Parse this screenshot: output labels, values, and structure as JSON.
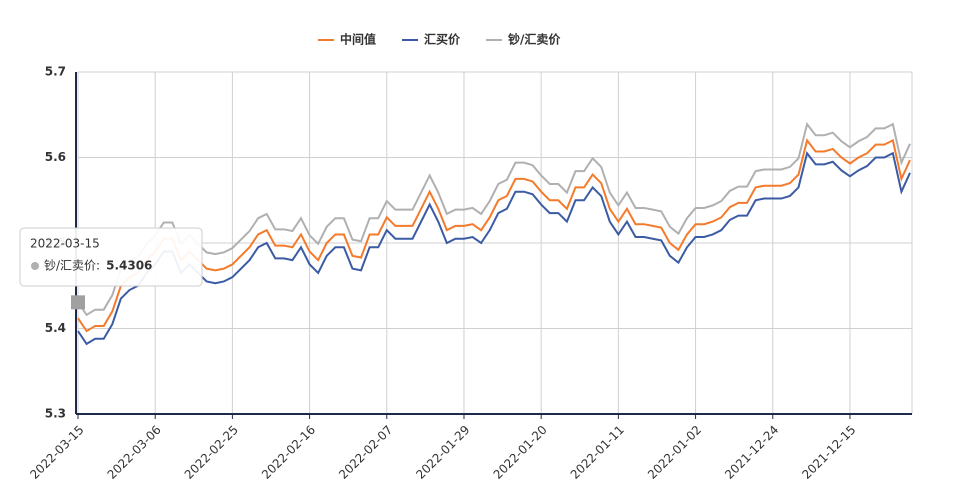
{
  "chart_data": {
    "type": "line",
    "categories": [
      "2022-03-15",
      null,
      null,
      null,
      null,
      null,
      null,
      null,
      null,
      "2022-03-06",
      null,
      null,
      null,
      null,
      null,
      null,
      null,
      null,
      "2022-02-25",
      null,
      null,
      null,
      null,
      null,
      null,
      null,
      null,
      "2022-02-16",
      null,
      null,
      null,
      null,
      null,
      null,
      null,
      null,
      "2022-02-07",
      null,
      null,
      null,
      null,
      null,
      null,
      null,
      null,
      "2022-01-29",
      null,
      null,
      null,
      null,
      null,
      null,
      null,
      null,
      "2022-01-20",
      null,
      null,
      null,
      null,
      null,
      null,
      null,
      null,
      "2022-01-11",
      null,
      null,
      null,
      null,
      null,
      null,
      null,
      null,
      "2022-01-02",
      null,
      null,
      null,
      null,
      null,
      null,
      null,
      null,
      "2021-12-24",
      null,
      null,
      null,
      null,
      null,
      null,
      null,
      null,
      "2021-12-15",
      null,
      null,
      null,
      null,
      null,
      null,
      null
    ],
    "series": [
      {
        "name": "中间值",
        "color": "#f47a2c",
        "values": [
          5.412,
          5.397,
          5.403,
          5.403,
          5.42,
          5.45,
          5.46,
          5.465,
          5.48,
          5.49,
          5.505,
          5.505,
          5.48,
          5.49,
          5.48,
          5.47,
          5.468,
          5.47,
          5.475,
          5.485,
          5.495,
          5.51,
          5.515,
          5.497,
          5.497,
          5.495,
          5.51,
          5.49,
          5.48,
          5.5,
          5.51,
          5.51,
          5.485,
          5.483,
          5.51,
          5.51,
          5.53,
          5.52,
          5.52,
          5.52,
          5.54,
          5.56,
          5.54,
          5.515,
          5.52,
          5.52,
          5.522,
          5.515,
          5.53,
          5.55,
          5.555,
          5.575,
          5.575,
          5.572,
          5.56,
          5.55,
          5.55,
          5.54,
          5.565,
          5.565,
          5.58,
          5.57,
          5.54,
          5.525,
          5.54,
          5.522,
          5.522,
          5.52,
          5.518,
          5.5,
          5.492,
          5.51,
          5.522,
          5.522,
          5.525,
          5.53,
          5.542,
          5.547,
          5.547,
          5.565,
          5.567,
          5.567,
          5.567,
          5.57,
          5.58,
          5.62,
          5.607,
          5.607,
          5.61,
          5.6,
          5.593,
          5.6,
          5.605,
          5.615,
          5.615,
          5.62,
          5.575,
          5.597
        ]
      },
      {
        "name": "汇买价",
        "color": "#3b5ba5",
        "values": [
          5.397,
          5.382,
          5.388,
          5.388,
          5.405,
          5.435,
          5.445,
          5.45,
          5.465,
          5.475,
          5.49,
          5.49,
          5.465,
          5.475,
          5.465,
          5.455,
          5.453,
          5.455,
          5.46,
          5.47,
          5.48,
          5.495,
          5.5,
          5.482,
          5.482,
          5.48,
          5.495,
          5.475,
          5.465,
          5.485,
          5.495,
          5.495,
          5.47,
          5.468,
          5.495,
          5.495,
          5.515,
          5.505,
          5.505,
          5.505,
          5.525,
          5.545,
          5.525,
          5.5,
          5.505,
          5.505,
          5.507,
          5.5,
          5.515,
          5.535,
          5.54,
          5.56,
          5.56,
          5.557,
          5.545,
          5.535,
          5.535,
          5.525,
          5.55,
          5.55,
          5.565,
          5.555,
          5.525,
          5.51,
          5.525,
          5.507,
          5.507,
          5.505,
          5.503,
          5.485,
          5.477,
          5.495,
          5.507,
          5.507,
          5.51,
          5.515,
          5.527,
          5.532,
          5.532,
          5.55,
          5.552,
          5.552,
          5.552,
          5.555,
          5.565,
          5.605,
          5.592,
          5.592,
          5.595,
          5.585,
          5.578,
          5.585,
          5.59,
          5.6,
          5.6,
          5.605,
          5.56,
          5.582
        ]
      },
      {
        "name": "钞/汇卖价",
        "color": "#b0b0b0",
        "values": [
          5.4306,
          5.416,
          5.422,
          5.422,
          5.439,
          5.469,
          5.479,
          5.484,
          5.499,
          5.509,
          5.524,
          5.524,
          5.499,
          5.509,
          5.499,
          5.489,
          5.487,
          5.489,
          5.494,
          5.504,
          5.514,
          5.529,
          5.534,
          5.516,
          5.516,
          5.514,
          5.529,
          5.509,
          5.499,
          5.519,
          5.529,
          5.529,
          5.504,
          5.502,
          5.529,
          5.529,
          5.549,
          5.539,
          5.539,
          5.539,
          5.559,
          5.579,
          5.559,
          5.534,
          5.539,
          5.539,
          5.541,
          5.534,
          5.549,
          5.569,
          5.574,
          5.594,
          5.594,
          5.591,
          5.579,
          5.569,
          5.569,
          5.559,
          5.584,
          5.584,
          5.599,
          5.589,
          5.559,
          5.544,
          5.559,
          5.541,
          5.541,
          5.539,
          5.537,
          5.519,
          5.511,
          5.529,
          5.541,
          5.541,
          5.544,
          5.549,
          5.561,
          5.566,
          5.566,
          5.584,
          5.586,
          5.586,
          5.586,
          5.589,
          5.599,
          5.639,
          5.626,
          5.626,
          5.629,
          5.619,
          5.612,
          5.619,
          5.624,
          5.634,
          5.634,
          5.639,
          5.594,
          5.616
        ]
      }
    ],
    "ylim": [
      5.3,
      5.7
    ],
    "yticks": [
      5.3,
      5.4,
      5.5,
      5.6,
      5.7
    ],
    "grid": true,
    "legend": "top",
    "tooltip": {
      "separator": ":"
    }
  }
}
